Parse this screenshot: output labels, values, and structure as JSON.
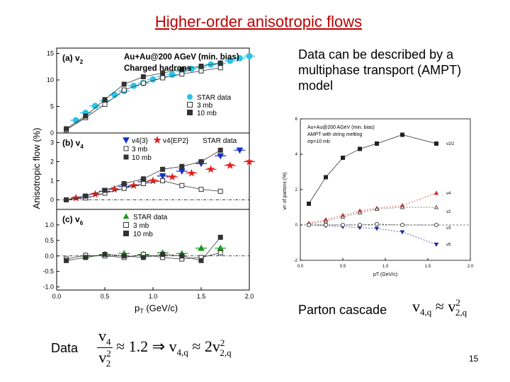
{
  "slide": {
    "title": "Higher-order anisotropic flows",
    "side_text": "Data can be described by a multiphase transport (AMPT) model",
    "parton_label": "Parton cascade",
    "data_label": "Data",
    "page_number": "15",
    "eq1": {
      "lhs": "v",
      "lhs_sub": "4,q",
      "rel": "≈",
      "rhs": "v",
      "rhs_sub": "2,q",
      "rhs_sup": "2"
    },
    "eq2": {
      "num": "v",
      "num_sub": "4",
      "den": "v",
      "den_sub": "2",
      "den_sup": "2",
      "rel": "≈ 1.2",
      "implies": "⇒",
      "lhs": "v",
      "lhs_sub": "4,q",
      "rel2": "≈ 2v",
      "rhs_sub": "2,q",
      "rhs_sup": "2"
    }
  },
  "chart_data": [
    {
      "type": "scatter",
      "panel": "a",
      "panel_label": "(a) v",
      "panel_label_sub": "2",
      "annotation_1": "Au+Au@200 AGeV (min. bias)",
      "annotation_2": "Charged hadrons",
      "xlabel": "pT (GeV/c)",
      "ylabel": "Anisotropic flow (%)",
      "xlim": [
        0.0,
        2.0
      ],
      "ylim": [
        0,
        16
      ],
      "yticks": [
        "0",
        "5",
        "10",
        "15"
      ],
      "legend": [
        "STAR data",
        "3 mb",
        "10 mb"
      ],
      "series": [
        {
          "name": "STAR data",
          "color": "#29c4e8",
          "marker": "circle-filled",
          "x": [
            0.2,
            0.3,
            0.4,
            0.5,
            0.6,
            0.7,
            0.8,
            0.9,
            1.0,
            1.1,
            1.2,
            1.3,
            1.4,
            1.5,
            1.6,
            1.7,
            1.8,
            1.9,
            2.0
          ],
          "y": [
            2.4,
            3.8,
            5.1,
            6.1,
            7.2,
            7.9,
            8.9,
            9.4,
            10.1,
            10.6,
            11.0,
            11.6,
            12.1,
            12.4,
            12.9,
            13.1,
            13.6,
            14.1,
            14.5
          ]
        },
        {
          "name": "3 mb",
          "color": "#333333",
          "marker": "square-open",
          "x": [
            0.1,
            0.3,
            0.5,
            0.7,
            0.9,
            1.1,
            1.3,
            1.5,
            1.7
          ],
          "y": [
            0.6,
            2.9,
            5.4,
            8.1,
            9.4,
            10.4,
            11.1,
            11.7,
            12.3
          ]
        },
        {
          "name": "10 mb",
          "color": "#333333",
          "marker": "square-filled",
          "x": [
            0.1,
            0.3,
            0.5,
            0.7,
            0.9,
            1.1,
            1.3,
            1.5,
            1.7
          ],
          "y": [
            0.8,
            3.2,
            6.3,
            9.2,
            10.6,
            11.3,
            12.0,
            12.6,
            13.2
          ]
        }
      ]
    },
    {
      "type": "scatter",
      "panel": "b",
      "panel_label": "(b) v",
      "panel_label_sub": "4",
      "xlim": [
        0.0,
        2.0
      ],
      "ylim": [
        -0.5,
        3.5
      ],
      "yticks": [
        "0",
        "1",
        "2",
        "3"
      ],
      "legend": [
        "v4{3}",
        "v4{EP2}",
        "STAR data",
        "3 mb",
        "10 mb"
      ],
      "series": [
        {
          "name": "v4{3}",
          "color": "#1530c8",
          "marker": "triangle-down-filled",
          "x": [
            0.3,
            0.5,
            0.7,
            0.9,
            1.1,
            1.3,
            1.5,
            1.7,
            1.9
          ],
          "y": [
            0.15,
            0.45,
            0.7,
            0.95,
            1.25,
            1.5,
            1.9,
            2.3,
            2.6
          ]
        },
        {
          "name": "v4{EP2}",
          "color": "#e02020",
          "marker": "star-filled",
          "x": [
            0.2,
            0.4,
            0.6,
            0.8,
            1.0,
            1.2,
            1.4,
            1.6,
            1.8,
            2.0
          ],
          "y": [
            0.1,
            0.3,
            0.55,
            0.75,
            1.0,
            1.2,
            1.4,
            1.6,
            1.8,
            2.0
          ]
        },
        {
          "name": "3 mb",
          "color": "#333333",
          "marker": "square-open",
          "x": [
            0.1,
            0.3,
            0.5,
            0.7,
            0.9,
            1.1,
            1.3,
            1.5,
            1.7
          ],
          "y": [
            0.0,
            0.1,
            0.35,
            0.6,
            0.85,
            1.0,
            0.75,
            0.55,
            0.45
          ]
        },
        {
          "name": "10 mb",
          "color": "#333333",
          "marker": "square-filled",
          "x": [
            0.1,
            0.3,
            0.5,
            0.7,
            0.9,
            1.1,
            1.3,
            1.5,
            1.7
          ],
          "y": [
            0.0,
            0.2,
            0.5,
            0.85,
            1.1,
            1.6,
            1.75,
            2.0,
            2.6
          ]
        }
      ]
    },
    {
      "type": "scatter",
      "panel": "c",
      "panel_label": "(c) v",
      "panel_label_sub": "6",
      "xlim": [
        0.0,
        2.0
      ],
      "ylim": [
        -1.1,
        1.5
      ],
      "yticks": [
        "-1.0",
        "-0.5",
        "0.0",
        "0.5",
        "1.0"
      ],
      "legend": [
        "STAR data",
        "3 mb",
        "10 mb"
      ],
      "series": [
        {
          "name": "STAR data",
          "color": "#1a9a1a",
          "marker": "triangle-up-filled",
          "x": [
            0.3,
            0.5,
            0.7,
            0.9,
            1.1,
            1.3,
            1.5,
            1.7
          ],
          "y": [
            0.0,
            0.05,
            0.08,
            0.05,
            0.1,
            0.08,
            0.25,
            0.25
          ]
        },
        {
          "name": "3 mb",
          "color": "#333333",
          "marker": "square-open",
          "x": [
            0.1,
            0.3,
            0.5,
            0.7,
            0.9,
            1.1,
            1.3,
            1.5,
            1.7
          ],
          "y": [
            -0.1,
            0.02,
            0.0,
            -0.05,
            0.05,
            -0.05,
            -0.1,
            -0.05,
            0.1
          ]
        },
        {
          "name": "10 mb",
          "color": "#333333",
          "marker": "square-filled",
          "x": [
            0.1,
            0.3,
            0.5,
            0.7,
            0.9,
            1.1,
            1.3,
            1.5,
            1.7
          ],
          "y": [
            -0.15,
            -0.05,
            0.05,
            0.0,
            -0.05,
            0.05,
            0.0,
            -0.15,
            0.6
          ]
        }
      ]
    },
    {
      "type": "line",
      "panel": "ampt",
      "annotation_1": "Au+Au@200 AGeV (min. bias)",
      "annotation_2": "AMPT with string melting",
      "annotation_3": "σp=10 mb",
      "xlabel": "pT (GeV/c)",
      "ylabel": "vn of partons (%)",
      "xlim": [
        0.0,
        2.0
      ],
      "ylim": [
        -2,
        6
      ],
      "xticks": [
        "0.0",
        "0.5",
        "1.0",
        "1.5",
        "2.0"
      ],
      "yticks": [
        "-2",
        "0",
        "2",
        "4",
        "6"
      ],
      "series": [
        {
          "name": "v2/2",
          "color": "#222222",
          "marker": "square-filled",
          "x": [
            0.1,
            0.3,
            0.5,
            0.7,
            0.9,
            1.2,
            1.6
          ],
          "y": [
            1.2,
            2.7,
            3.8,
            4.3,
            4.6,
            5.1,
            4.6
          ]
        },
        {
          "name": "v4",
          "color": "#d03030",
          "marker": "triangle-up-filled",
          "x": [
            0.1,
            0.3,
            0.5,
            0.7,
            0.9,
            1.2,
            1.6
          ],
          "y": [
            0.1,
            0.3,
            0.55,
            0.8,
            0.95,
            1.1,
            1.8
          ]
        },
        {
          "name": "v2^2",
          "color": "#555555",
          "marker": "triangle-up-open",
          "x": [
            0.1,
            0.3,
            0.5,
            0.7,
            0.9,
            1.2,
            1.6
          ],
          "y": [
            0.05,
            0.2,
            0.45,
            0.7,
            0.9,
            1.0,
            1.0
          ]
        },
        {
          "name": "v5",
          "color": "#2a2aa0",
          "marker": "triangle-down-filled",
          "x": [
            0.1,
            0.3,
            0.5,
            0.7,
            0.9,
            1.2,
            1.6
          ],
          "y": [
            0.0,
            -0.05,
            -0.1,
            -0.15,
            -0.2,
            -0.4,
            -1.1
          ]
        },
        {
          "name": "v3",
          "color": "#444444",
          "marker": "circle-open",
          "x": [
            0.1,
            0.3,
            0.5,
            0.7,
            0.9,
            1.2,
            1.6
          ],
          "y": [
            0.0,
            0.0,
            0.0,
            0.0,
            0.05,
            0.0,
            0.0
          ]
        }
      ],
      "curve_labels": [
        "v2/2",
        "v4",
        "v2",
        "v3",
        "v5"
      ]
    }
  ]
}
